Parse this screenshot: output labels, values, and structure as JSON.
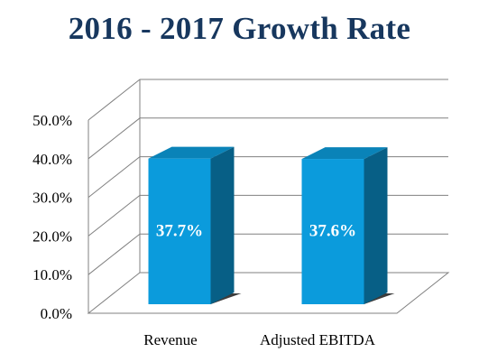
{
  "chart_data": {
    "type": "bar",
    "title": "2016 - 2017 Growth Rate",
    "categories": [
      "Revenue",
      "Adjusted EBITDA"
    ],
    "values": [
      37.7,
      37.6
    ],
    "data_labels": [
      "37.7%",
      "37.6%"
    ],
    "ylim": [
      0,
      50
    ],
    "yticks": [
      "0.0%",
      "10.0%",
      "20.0%",
      "30.0%",
      "40.0%",
      "50.0%"
    ],
    "xlabel": "",
    "ylabel": "",
    "grid": true,
    "style": "3d-column",
    "colors": {
      "bar_front": "#0b9bdc",
      "bar_side": "#075f86",
      "bar_top": "#0a83b8",
      "title": "#17375e",
      "grid": "#808080"
    }
  }
}
